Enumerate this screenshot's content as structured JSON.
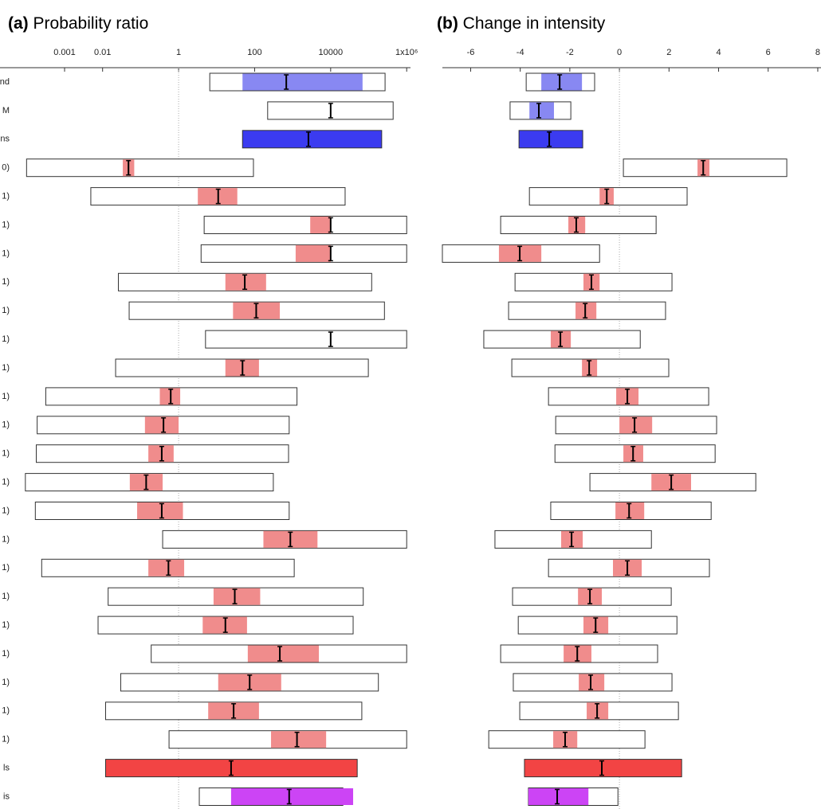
{
  "chart_data": [
    {
      "type": "forest",
      "panel_label": "(a)",
      "title": "Probability ratio",
      "log_scale": true,
      "xlim": [
        2e-05,
        1260000
      ],
      "xticks": [
        0.001,
        0.01,
        1,
        100,
        10000,
        {
          "value": 1000000,
          "label": "1x10⁶"
        }
      ],
      "reference": 1,
      "categories": [
        "nd",
        "M",
        "ns",
        "0)",
        "1)",
        "1)",
        "1)",
        "1)",
        "1)",
        "1)",
        "1)",
        "1)",
        "1)",
        "1)",
        "1)",
        "1)",
        "1)",
        "1)",
        "1)",
        "1)",
        "1)",
        "1)",
        "1)",
        "1)",
        "ls",
        "is"
      ],
      "lower": [
        6.6,
        220,
        48,
        0.0001,
        0.0049,
        4.7,
        3.9,
        0.026,
        0.05,
        5.1,
        0.022,
        0.00032,
        0.00019,
        0.00018,
        9.3e-05,
        0.00017,
        0.38,
        0.00025,
        0.014,
        0.0076,
        0.19,
        0.03,
        0.012,
        0.56,
        0.012,
        3.5
      ],
      "upper": [
        270000,
        440000,
        220000,
        93,
        24000,
        1000000,
        1000000,
        120000,
        260000,
        1000000,
        98000,
        1300,
        810,
        780,
        310,
        810,
        1000000,
        1100,
        72000,
        39000,
        1000000,
        180000,
        66000,
        1000000,
        50000,
        21000
      ],
      "inner_lower": [
        48,
        null,
        null,
        0.034,
        3.2,
        2900,
        1200,
        17,
        27,
        null,
        17,
        0.32,
        0.13,
        0.16,
        0.052,
        0.081,
        170,
        0.16,
        8.3,
        4.3,
        66,
        11,
        6,
        270,
        null,
        24
      ],
      "inner_upper": [
        69000,
        null,
        null,
        0.068,
        35,
        10000,
        10000,
        200,
        460,
        null,
        130,
        1.1,
        1.0,
        0.74,
        0.38,
        1.3,
        4500,
        1.4,
        140,
        63,
        4900,
        500,
        130,
        7600,
        null,
        39000
      ],
      "best": [
        680,
        10000,
        2600,
        0.048,
        11,
        10000,
        10000,
        55,
        110,
        10000,
        48,
        0.62,
        0.4,
        0.36,
        0.14,
        0.36,
        870,
        0.54,
        30,
        17,
        460,
        74,
        28,
        1300,
        24,
        810
      ],
      "inner_color": [
        "#8888f2",
        null,
        null,
        "#f08c8c",
        "#f08c8c",
        "#f08c8c",
        "#f08c8c",
        "#f08c8c",
        "#f08c8c",
        null,
        "#f08c8c",
        "#f08c8c",
        "#f08c8c",
        "#f08c8c",
        "#f08c8c",
        "#f08c8c",
        "#f08c8c",
        "#f08c8c",
        "#f08c8c",
        "#f08c8c",
        "#f08c8c",
        "#f08c8c",
        "#f08c8c",
        "#f08c8c",
        null,
        "#cc44f5"
      ],
      "box_fill": [
        null,
        null,
        "#3b3bf0",
        null,
        null,
        null,
        null,
        null,
        null,
        null,
        null,
        null,
        null,
        null,
        null,
        null,
        null,
        null,
        null,
        null,
        null,
        null,
        null,
        null,
        "#f24444",
        null
      ]
    },
    {
      "type": "forest",
      "panel_label": "(b)",
      "title": "Change in intensity",
      "log_scale": false,
      "xlim": [
        -7.14,
        8.13
      ],
      "xticks": [
        -6,
        -4,
        -2,
        0,
        2,
        4,
        6,
        8
      ],
      "reference": 0,
      "lower": [
        -3.76,
        -4.41,
        -4.05,
        0.16,
        -3.63,
        -4.79,
        -7.14,
        -4.21,
        -4.47,
        -5.47,
        -4.34,
        -2.86,
        -2.57,
        -2.6,
        -1.19,
        -2.77,
        -5.02,
        -2.86,
        -4.31,
        -4.08,
        -4.79,
        -4.28,
        -4.02,
        -5.27,
        -3.83,
        -3.67
      ],
      "upper": [
        -1.0,
        -1.96,
        -1.48,
        6.75,
        2.73,
        1.48,
        -0.8,
        2.12,
        1.86,
        0.84,
        1.99,
        3.6,
        3.92,
        3.86,
        5.5,
        3.7,
        1.29,
        3.63,
        2.09,
        2.32,
        1.54,
        2.12,
        2.38,
        1.03,
        2.51,
        -0.06
      ],
      "inner_lower": [
        -3.15,
        -3.63,
        null,
        3.15,
        -0.8,
        -2.06,
        -4.86,
        -1.45,
        -1.77,
        -2.77,
        -1.51,
        -0.13,
        0,
        0.16,
        1.29,
        -0.16,
        -2.35,
        -0.26,
        -1.67,
        -1.45,
        -2.25,
        -1.64,
        -1.32,
        -2.67,
        null,
        -3.67
      ],
      "inner_upper": [
        -1.51,
        -2.64,
        null,
        3.63,
        -0.23,
        -1.38,
        -3.15,
        -0.8,
        -0.93,
        -1.96,
        -0.9,
        0.77,
        1.32,
        0.96,
        2.89,
        1.0,
        -1.48,
        0.9,
        -0.71,
        -0.45,
        -1.13,
        -0.61,
        -0.45,
        -1.7,
        null,
        -1.25
      ],
      "best": [
        -2.41,
        -3.25,
        -2.83,
        3.38,
        -0.51,
        -1.74,
        -4.02,
        -1.13,
        -1.38,
        -2.38,
        -1.22,
        0.32,
        0.61,
        0.55,
        2.09,
        0.39,
        -1.93,
        0.32,
        -1.19,
        -0.96,
        -1.7,
        -1.16,
        -0.9,
        -2.19,
        -0.71,
        -2.51
      ],
      "inner_color": [
        "#8888f2",
        "#8888f2",
        null,
        "#f08c8c",
        "#f08c8c",
        "#f08c8c",
        "#f08c8c",
        "#f08c8c",
        "#f08c8c",
        "#f08c8c",
        "#f08c8c",
        "#f08c8c",
        "#f08c8c",
        "#f08c8c",
        "#f08c8c",
        "#f08c8c",
        "#f08c8c",
        "#f08c8c",
        "#f08c8c",
        "#f08c8c",
        "#f08c8c",
        "#f08c8c",
        "#f08c8c",
        "#f08c8c",
        null,
        "#cc44f5"
      ],
      "box_fill": [
        null,
        null,
        "#3b3bf0",
        null,
        null,
        null,
        null,
        null,
        null,
        null,
        null,
        null,
        null,
        null,
        null,
        null,
        null,
        null,
        null,
        null,
        null,
        null,
        null,
        null,
        "#f24444",
        null
      ]
    }
  ]
}
